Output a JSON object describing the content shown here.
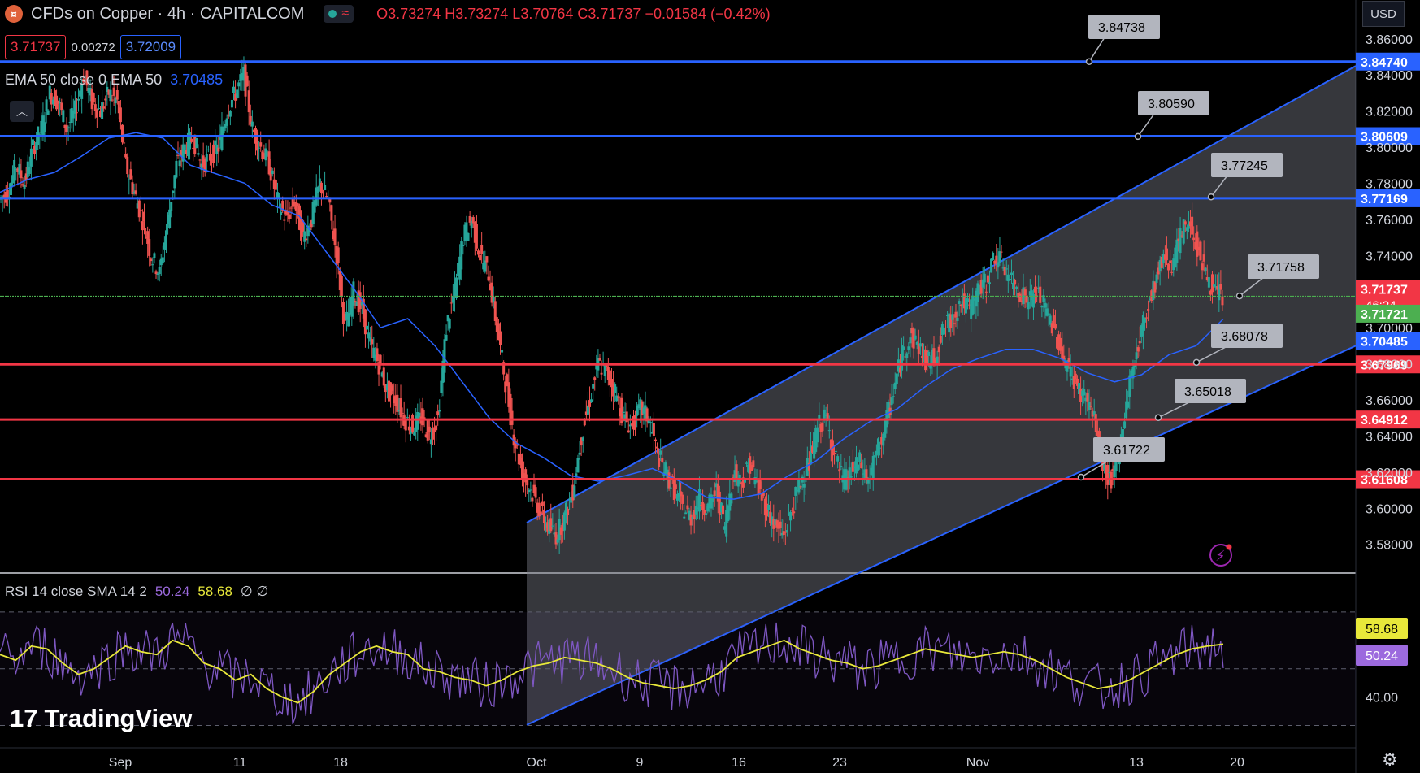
{
  "header": {
    "logo_text": "¤",
    "title": "CFDs on Copper · 4h · CAPITALCOM",
    "ohlc": "O3.73274 H3.73274 L3.70764 C3.71737 −0.01584 (−0.42%)"
  },
  "quote": {
    "sell": "3.71737",
    "spread": "0.00272",
    "buy": "3.72009"
  },
  "ema_legend": {
    "label": "EMA 50 close 0 EMA 50",
    "value": "3.70485"
  },
  "rsi_legend": {
    "label": "RSI 14 close SMA 14 2",
    "rsi": "50.24",
    "sma": "58.68",
    "extra": "∅ ∅"
  },
  "currency": "USD",
  "brand": "TradingView",
  "colors": {
    "up": "#26a69a",
    "down": "#ef5350",
    "blue": "#2962ff",
    "red": "#f23645",
    "green": "#4caf50",
    "ema": "#2962ff",
    "rsi": "#7e57c2",
    "rsi_sma": "#e8e83a"
  },
  "chart_data": {
    "type": "candlestick",
    "symbol": "CFDs on Copper",
    "timeframe": "4h",
    "y_range": [
      3.565,
      3.868
    ],
    "y_ticks": [
      "3.86000",
      "3.84000",
      "3.82000",
      "3.80000",
      "3.78000",
      "3.76000",
      "3.74000",
      "3.72000",
      "3.70000",
      "3.68000",
      "3.66000",
      "3.64000",
      "3.62000",
      "3.60000",
      "3.58000"
    ],
    "x_ticks": [
      "Sep",
      "11",
      "18",
      "Oct",
      "9",
      "16",
      "23",
      "Nov",
      "13",
      "20"
    ],
    "close_path": [
      3.775,
      3.79,
      3.78,
      3.8,
      3.81,
      3.83,
      3.825,
      3.81,
      3.82,
      3.84,
      3.825,
      3.82,
      3.83,
      3.825,
      3.79,
      3.775,
      3.76,
      3.74,
      3.73,
      3.76,
      3.79,
      3.8,
      3.805,
      3.79,
      3.795,
      3.8,
      3.82,
      3.83,
      3.84,
      3.81,
      3.8,
      3.79,
      3.77,
      3.76,
      3.77,
      3.75,
      3.76,
      3.78,
      3.77,
      3.74,
      3.7,
      3.72,
      3.71,
      3.69,
      3.68,
      3.665,
      3.66,
      3.65,
      3.645,
      3.65,
      3.64,
      3.65,
      3.7,
      3.72,
      3.75,
      3.76,
      3.74,
      3.73,
      3.7,
      3.67,
      3.64,
      3.62,
      3.61,
      3.6,
      3.59,
      3.585,
      3.595,
      3.61,
      3.64,
      3.66,
      3.68,
      3.675,
      3.665,
      3.65,
      3.645,
      3.655,
      3.65,
      3.63,
      3.62,
      3.61,
      3.6,
      3.595,
      3.605,
      3.6,
      3.61,
      3.59,
      3.62,
      3.615,
      3.625,
      3.61,
      3.6,
      3.59,
      3.585,
      3.6,
      3.615,
      3.625,
      3.645,
      3.65,
      3.63,
      3.615,
      3.62,
      3.625,
      3.615,
      3.63,
      3.645,
      3.665,
      3.685,
      3.695,
      3.69,
      3.68,
      3.685,
      3.7,
      3.705,
      3.715,
      3.71,
      3.72,
      3.725,
      3.74,
      3.735,
      3.725,
      3.72,
      3.715,
      3.72,
      3.71,
      3.7,
      3.685,
      3.675,
      3.665,
      3.66,
      3.645,
      3.62,
      3.615,
      3.64,
      3.67,
      3.69,
      3.71,
      3.725,
      3.74,
      3.735,
      3.75,
      3.76,
      3.745,
      3.73,
      3.72,
      3.71737
    ],
    "ema50_path": [
      3.775,
      3.782,
      3.786,
      3.795,
      3.805,
      3.808,
      3.805,
      3.79,
      3.785,
      3.78,
      3.768,
      3.762,
      3.742,
      3.722,
      3.7,
      3.705,
      3.69,
      3.67,
      3.65,
      3.636,
      3.628,
      3.618,
      3.615,
      3.618,
      3.622,
      3.615,
      3.606,
      3.605,
      3.608,
      3.618,
      3.626,
      3.638,
      3.648,
      3.655,
      3.667,
      3.677,
      3.683,
      3.688,
      3.688,
      3.683,
      3.675,
      3.67,
      3.674,
      3.685,
      3.69,
      3.70485
    ],
    "rsi_path": [
      55,
      53,
      58,
      57,
      52,
      48,
      50,
      54,
      58,
      56,
      55,
      60,
      58,
      52,
      50,
      46,
      48,
      43,
      40,
      38,
      42,
      48,
      52,
      56,
      58,
      56,
      55,
      50,
      49,
      47,
      46,
      44,
      46,
      49,
      51,
      52,
      54,
      53,
      52,
      50,
      47,
      45,
      44,
      43,
      44,
      46,
      49,
      54,
      56,
      58,
      60,
      57,
      55,
      53,
      52,
      50,
      51,
      53,
      55,
      57,
      56,
      55,
      54,
      55,
      56,
      55,
      53,
      50,
      47,
      45,
      43,
      44,
      46,
      49,
      52,
      55,
      57,
      58,
      58.68
    ],
    "rsi_range": [
      25,
      80
    ],
    "rsi_ticks": [
      "40.00"
    ],
    "horizontal_levels": [
      {
        "price": 3.8474,
        "label": "3.84740",
        "color": "blue"
      },
      {
        "price": 3.80609,
        "label": "3.80609",
        "color": "blue"
      },
      {
        "price": 3.77169,
        "label": "3.77169",
        "color": "blue"
      },
      {
        "price": 3.67969,
        "label": "3.67969",
        "color": "red"
      },
      {
        "price": 3.64912,
        "label": "3.64912",
        "color": "red"
      },
      {
        "price": 3.61608,
        "label": "3.61608",
        "color": "red"
      },
      {
        "price": 3.71737,
        "label": "3.71737",
        "color": "green_line"
      }
    ],
    "axis_badges": [
      {
        "price": 3.71737,
        "label": "3.71737",
        "sub": "46:24",
        "bg": "#f23645"
      },
      {
        "price": 3.71721,
        "label": "3.71721",
        "bg": "#4caf50"
      },
      {
        "price": 3.70485,
        "label": "3.70485",
        "bg": "#2962ff"
      }
    ],
    "callouts": [
      {
        "label": "3.84738",
        "price": 3.84738
      },
      {
        "label": "3.80590",
        "price": 3.8059
      },
      {
        "label": "3.77245",
        "price": 3.77245
      },
      {
        "label": "3.71758",
        "price": 3.71758
      },
      {
        "label": "3.68078",
        "price": 3.68078
      },
      {
        "label": "3.65018",
        "price": 3.65018
      },
      {
        "label": "3.61722",
        "price": 3.61722
      }
    ],
    "rsi_badges": [
      {
        "label": "58.68",
        "bg": "#e8e83a",
        "fg": "#000"
      },
      {
        "label": "50.24",
        "bg": "#9c6ade",
        "fg": "#fff"
      }
    ]
  }
}
